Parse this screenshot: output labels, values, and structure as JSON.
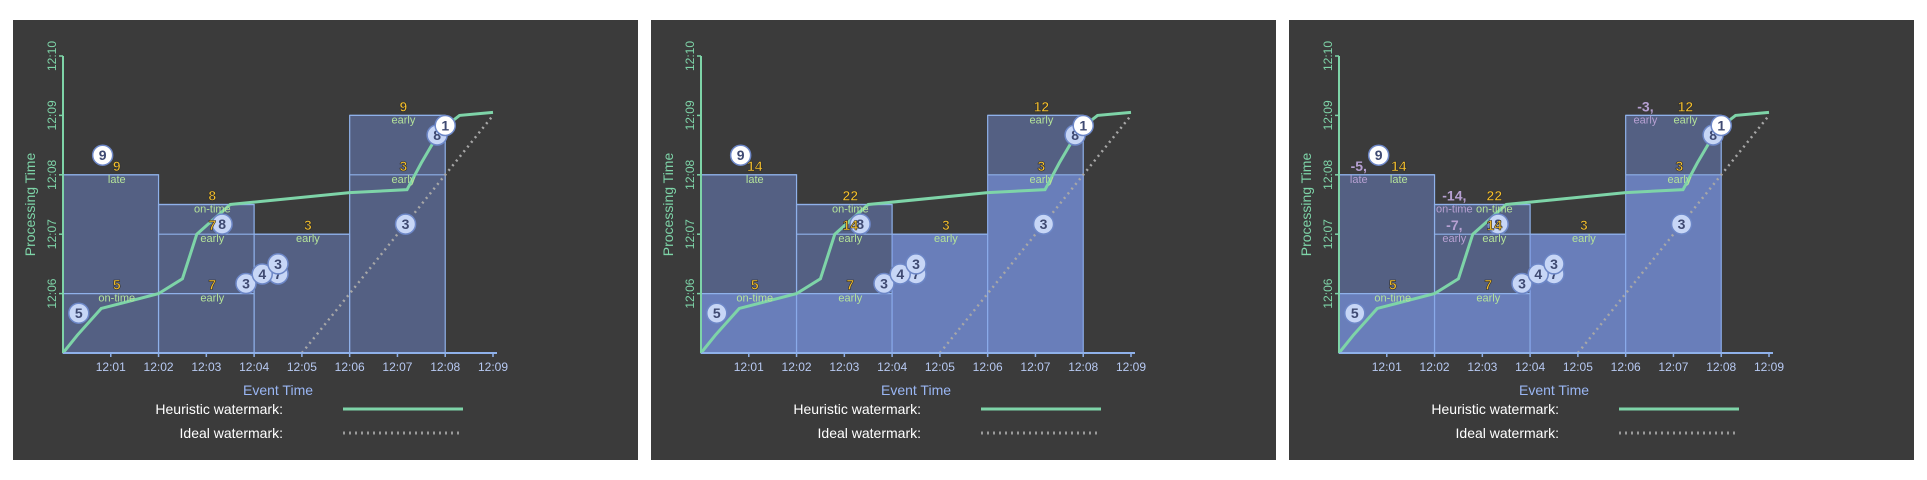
{
  "chart_data": [
    {
      "type": "scatter",
      "xlabel": "Event Time",
      "ylabel": "Processing Time",
      "xlim": [
        "12:00",
        "12:09"
      ],
      "ylim": [
        "12:05",
        "12:10"
      ],
      "x_ticks": [
        "12:01",
        "12:02",
        "12:03",
        "12:04",
        "12:05",
        "12:06",
        "12:07",
        "12:08",
        "12:09"
      ],
      "y_ticks": [
        "12:06",
        "12:07",
        "12:08",
        "12:09",
        "12:10"
      ],
      "legend": [
        {
          "label": "Heuristic watermark:",
          "style": "solid",
          "color": "#7ed4a8"
        },
        {
          "label": "Ideal watermark:",
          "style": "dotted",
          "color": "#9a9a9a"
        }
      ],
      "points": [
        {
          "x": 12.0033,
          "y": 12.0567,
          "label": "5"
        },
        {
          "x": 12.045,
          "y": 12.0633,
          "label": "7"
        },
        {
          "x": 12.0333,
          "y": 12.0717,
          "label": "8"
        },
        {
          "x": 12.0083,
          "y": 12.0833,
          "label": "9"
        },
        {
          "x": 12.0383,
          "y": 12.0617,
          "label": "3"
        },
        {
          "x": 12.0417,
          "y": 12.0633,
          "label": "4"
        },
        {
          "x": 12.045,
          "y": 12.065,
          "label": "3"
        },
        {
          "x": 12.0717,
          "y": 12.0717,
          "label": "3"
        },
        {
          "x": 12.0783,
          "y": 12.0867,
          "label": "8"
        },
        {
          "x": 12.08,
          "y": 12.0883,
          "label": "1"
        }
      ],
      "panes": [
        {
          "x": [
            "12:00",
            "12:02"
          ],
          "y_start": "12:05",
          "firings": [
            {
              "y": "12:06",
              "value": "5",
              "tag": "on-time"
            },
            {
              "y": "12:08",
              "value": "9",
              "tag": "late"
            }
          ]
        },
        {
          "x": [
            "12:02",
            "12:04"
          ],
          "y_start": "12:05",
          "firings": [
            {
              "y": "12:06",
              "value": "7",
              "tag": "early"
            },
            {
              "y": "12:07",
              "value": "7",
              "tag": "early"
            },
            {
              "y": "12:07:30",
              "value": "8",
              "tag": "on-time"
            }
          ]
        },
        {
          "x": [
            "12:04",
            "12:06"
          ],
          "y_start": "12:05",
          "firings": [
            {
              "y": "12:07",
              "value": "3",
              "tag": "early"
            }
          ]
        },
        {
          "x": [
            "12:06",
            "12:08"
          ],
          "y_start": "12:05",
          "firings": [
            {
              "y": "12:08",
              "value": "3",
              "tag": "early"
            },
            {
              "y": "12:09",
              "value": "9",
              "tag": "early"
            }
          ]
        }
      ]
    },
    {
      "type": "scatter",
      "xlabel": "Event Time",
      "ylabel": "Processing Time",
      "xlim": [
        "12:00",
        "12:09"
      ],
      "ylim": [
        "12:05",
        "12:10"
      ],
      "x_ticks": [
        "12:01",
        "12:02",
        "12:03",
        "12:04",
        "12:05",
        "12:06",
        "12:07",
        "12:08",
        "12:09"
      ],
      "y_ticks": [
        "12:06",
        "12:07",
        "12:08",
        "12:09",
        "12:10"
      ],
      "legend": [
        {
          "label": "Heuristic watermark:",
          "style": "solid",
          "color": "#7ed4a8"
        },
        {
          "label": "Ideal watermark:",
          "style": "dotted",
          "color": "#9a9a9a"
        }
      ],
      "points": [
        {
          "x": 12.0033,
          "y": 12.0567,
          "label": "5"
        },
        {
          "x": 12.045,
          "y": 12.0633,
          "label": "7"
        },
        {
          "x": 12.0333,
          "y": 12.0717,
          "label": "8"
        },
        {
          "x": 12.0083,
          "y": 12.0833,
          "label": "9"
        },
        {
          "x": 12.0383,
          "y": 12.0617,
          "label": "3"
        },
        {
          "x": 12.0417,
          "y": 12.0633,
          "label": "4"
        },
        {
          "x": 12.045,
          "y": 12.065,
          "label": "3"
        },
        {
          "x": 12.0717,
          "y": 12.0717,
          "label": "3"
        },
        {
          "x": 12.0783,
          "y": 12.0867,
          "label": "8"
        },
        {
          "x": 12.08,
          "y": 12.0883,
          "label": "1"
        }
      ],
      "panes": [
        {
          "x": [
            "12:00",
            "12:02"
          ],
          "y_start": "12:05",
          "firings": [
            {
              "y": "12:06",
              "value": "5",
              "tag": "on-time"
            },
            {
              "y": "12:08",
              "value": "14",
              "tag": "late"
            }
          ]
        },
        {
          "x": [
            "12:02",
            "12:04"
          ],
          "y_start": "12:05",
          "firings": [
            {
              "y": "12:06",
              "value": "7",
              "tag": "early"
            },
            {
              "y": "12:07",
              "value": "14",
              "tag": "early"
            },
            {
              "y": "12:07:30",
              "value": "22",
              "tag": "on-time"
            }
          ]
        },
        {
          "x": [
            "12:04",
            "12:06"
          ],
          "y_start": "12:05",
          "firings": [
            {
              "y": "12:07",
              "value": "3",
              "tag": "early"
            }
          ]
        },
        {
          "x": [
            "12:06",
            "12:08"
          ],
          "y_start": "12:05",
          "firings": [
            {
              "y": "12:08",
              "value": "3",
              "tag": "early"
            },
            {
              "y": "12:09",
              "value": "12",
              "tag": "early"
            }
          ]
        }
      ]
    },
    {
      "type": "scatter",
      "xlabel": "Event Time",
      "ylabel": "Processing Time",
      "xlim": [
        "12:00",
        "12:09"
      ],
      "ylim": [
        "12:05",
        "12:10"
      ],
      "x_ticks": [
        "12:01",
        "12:02",
        "12:03",
        "12:04",
        "12:05",
        "12:06",
        "12:07",
        "12:08",
        "12:09"
      ],
      "y_ticks": [
        "12:06",
        "12:07",
        "12:08",
        "12:09",
        "12:10"
      ],
      "legend": [
        {
          "label": "Heuristic watermark:",
          "style": "solid",
          "color": "#7ed4a8"
        },
        {
          "label": "Ideal watermark:",
          "style": "dotted",
          "color": "#9a9a9a"
        }
      ],
      "points": [
        {
          "x": 12.0033,
          "y": 12.0567,
          "label": "5"
        },
        {
          "x": 12.045,
          "y": 12.0633,
          "label": "7"
        },
        {
          "x": 12.0333,
          "y": 12.0717,
          "label": "8"
        },
        {
          "x": 12.0083,
          "y": 12.0833,
          "label": "9"
        },
        {
          "x": 12.0383,
          "y": 12.0617,
          "label": "3"
        },
        {
          "x": 12.0417,
          "y": 12.0633,
          "label": "4"
        },
        {
          "x": 12.045,
          "y": 12.065,
          "label": "3"
        },
        {
          "x": 12.0717,
          "y": 12.0717,
          "label": "3"
        },
        {
          "x": 12.0783,
          "y": 12.0867,
          "label": "8"
        },
        {
          "x": 12.08,
          "y": 12.0883,
          "label": "1"
        }
      ],
      "panes": [
        {
          "x": [
            "12:00",
            "12:02"
          ],
          "y_start": "12:05",
          "firings": [
            {
              "y": "12:06",
              "value": "5",
              "tag": "on-time"
            },
            {
              "y": "12:08",
              "value": "14",
              "tag": "late",
              "retraction": "-5,",
              "retraction_tag": "late"
            }
          ]
        },
        {
          "x": [
            "12:02",
            "12:04"
          ],
          "y_start": "12:05",
          "firings": [
            {
              "y": "12:06",
              "value": "7",
              "tag": "early"
            },
            {
              "y": "12:07",
              "value": "14",
              "tag": "early",
              "retraction": "-7,",
              "retraction_tag": "early"
            },
            {
              "y": "12:07:30",
              "value": "22",
              "tag": "on-time",
              "retraction": "-14,",
              "retraction_tag": "on-time"
            }
          ]
        },
        {
          "x": [
            "12:04",
            "12:06"
          ],
          "y_start": "12:05",
          "firings": [
            {
              "y": "12:07",
              "value": "3",
              "tag": "early"
            }
          ]
        },
        {
          "x": [
            "12:06",
            "12:08"
          ],
          "y_start": "12:05",
          "firings": [
            {
              "y": "12:08",
              "value": "3",
              "tag": "early"
            },
            {
              "y": "12:09",
              "value": "12",
              "tag": "early",
              "retraction": "-3,",
              "retraction_tag": "early"
            }
          ]
        }
      ]
    }
  ]
}
